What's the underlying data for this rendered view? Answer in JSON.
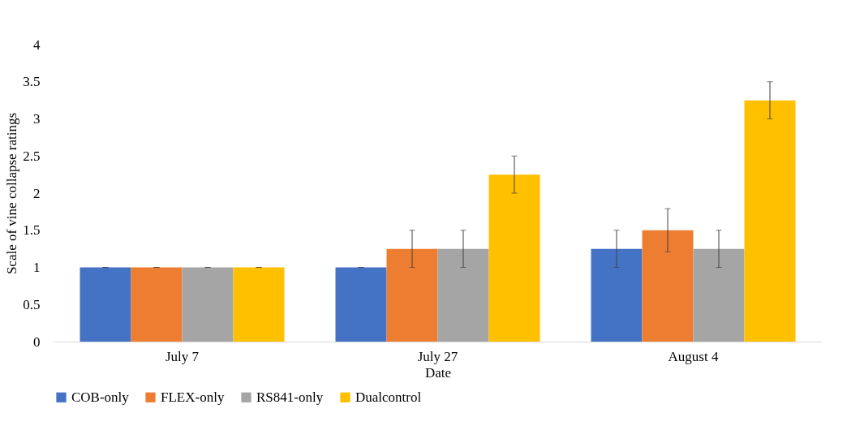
{
  "chart_data": {
    "type": "bar",
    "xlabel": "Date",
    "ylabel": "Scale of vine collapse ratings",
    "categories": [
      "July 7",
      "July 27",
      "August 4"
    ],
    "series": [
      {
        "name": "COB-only",
        "color": "#4472c4",
        "values": [
          1,
          1,
          1.25
        ],
        "errors": [
          0,
          0,
          0.25
        ]
      },
      {
        "name": "FLEX-only",
        "color": "#ed7d31",
        "values": [
          1,
          1.25,
          1.5
        ],
        "errors": [
          0,
          0.25,
          0.29
        ]
      },
      {
        "name": "RS841-only",
        "color": "#a5a5a5",
        "values": [
          1,
          1.25,
          1.25
        ],
        "errors": [
          0,
          0.25,
          0.25
        ]
      },
      {
        "name": "Dualcontrol",
        "color": "#ffc000",
        "values": [
          1,
          2.25,
          3.25
        ],
        "errors": [
          0,
          0.25,
          0.25
        ]
      }
    ],
    "ylim": [
      0,
      4
    ],
    "yticks": [
      0,
      0.5,
      1,
      1.5,
      2,
      2.5,
      3,
      3.5,
      4
    ],
    "grid": false,
    "legend": "bottom"
  }
}
